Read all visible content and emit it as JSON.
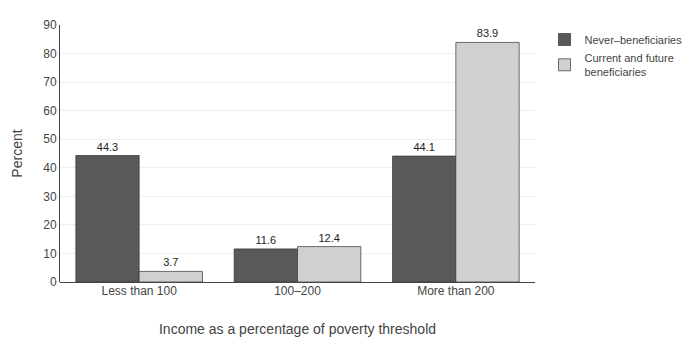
{
  "chart_data": {
    "type": "bar",
    "categories": [
      "Less than 100",
      "100–200",
      "More than 200"
    ],
    "series": [
      {
        "name": "Never–beneficiaries",
        "color": "#595959",
        "values": [
          44.3,
          11.6,
          44.1
        ]
      },
      {
        "name": "Current and future\nbeneficiaries",
        "color": "#d0d0d0",
        "values": [
          3.7,
          12.4,
          83.9
        ]
      }
    ],
    "xlabel": "Income as a percentage of poverty threshold",
    "ylabel": "Percent",
    "ylim": [
      0,
      90
    ],
    "yticks": [
      0,
      10,
      20,
      30,
      40,
      50,
      60,
      70,
      80,
      90
    ],
    "grid": true,
    "legend": "upper right",
    "data_labels": true
  }
}
